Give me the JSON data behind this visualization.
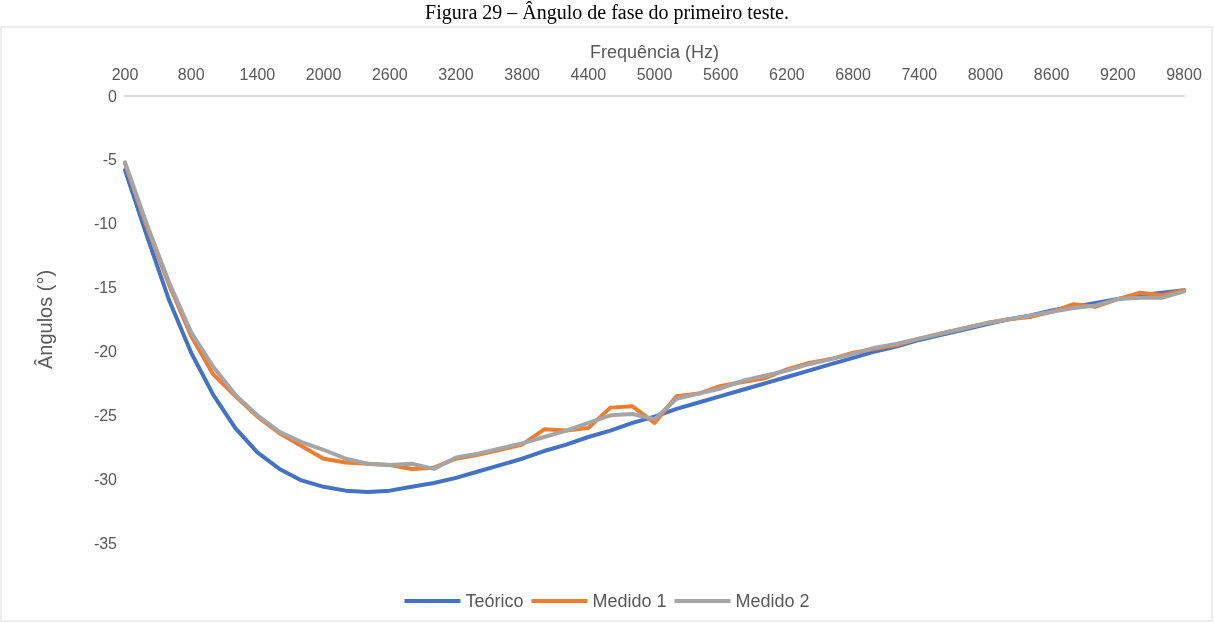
{
  "chart_data": {
    "type": "line",
    "title": "Figura 29 – Ângulo de fase do primeiro teste.",
    "xlabel": "Frequência (Hz)",
    "ylabel": "Ângulos (°)",
    "categories": [
      "200",
      null,
      null,
      "800",
      null,
      null,
      "1400",
      null,
      null,
      "2000",
      null,
      null,
      "2600",
      null,
      null,
      "3200",
      null,
      null,
      "3800",
      null,
      null,
      "4400",
      null,
      null,
      "5000",
      null,
      null,
      "5600",
      null,
      null,
      "6200",
      null,
      null,
      "6800",
      null,
      null,
      "7400",
      null,
      null,
      "8000",
      null,
      null,
      "8600",
      null,
      null,
      "9200",
      null,
      null,
      "9800"
    ],
    "series": [
      {
        "name": "Teórico",
        "color": "#4472c4",
        "values": [
          -5.8,
          -11,
          -16,
          -20.1,
          -23.4,
          -26,
          -27.9,
          -29.2,
          -30.1,
          -30.6,
          -30.9,
          -31,
          -30.9,
          -30.6,
          -30.3,
          -29.9,
          -29.4,
          -28.9,
          -28.4,
          -27.8,
          -27.3,
          -26.7,
          -26.2,
          -25.6,
          -25.1,
          -24.5,
          -24,
          -23.5,
          -23,
          -22.5,
          -22,
          -21.5,
          -21,
          -20.5,
          -20,
          -19.6,
          -19.1,
          -18.7,
          -18.3,
          -17.9,
          -17.5,
          -17.2,
          -16.8,
          -16.5,
          -16.2,
          -15.9,
          -15.6,
          -15.4,
          -15.2
        ]
      },
      {
        "name": "Medido 1",
        "color": "#ed7d31",
        "values": [
          -5.3,
          -10.3,
          -14.8,
          -18.8,
          -21.8,
          -23.5,
          -25.1,
          -26.4,
          -27.4,
          -28.4,
          -28.7,
          -28.8,
          -28.9,
          -29.2,
          -29.1,
          -28.4,
          -28.1,
          -27.7,
          -27.3,
          -26.1,
          -26.2,
          -26,
          -24.4,
          -24.3,
          -25.6,
          -23.5,
          -23.3,
          -22.7,
          -22.4,
          -22.1,
          -21.4,
          -20.9,
          -20.6,
          -20.1,
          -19.8,
          -19.5,
          -19,
          -18.6,
          -18.2,
          -17.8,
          -17.5,
          -17.3,
          -16.9,
          -16.3,
          -16.5,
          -15.9,
          -15.4,
          -15.6,
          -15.2
        ]
      },
      {
        "name": "Medido 2",
        "color": "#a5a5a5",
        "values": [
          -5.2,
          -10.1,
          -14.6,
          -18.5,
          -21.2,
          -23.4,
          -25,
          -26.3,
          -27.1,
          -27.7,
          -28.4,
          -28.8,
          -28.9,
          -28.8,
          -29.2,
          -28.3,
          -28,
          -27.6,
          -27.2,
          -26.7,
          -26.2,
          -25.6,
          -25,
          -24.9,
          -25.3,
          -23.7,
          -23.3,
          -22.9,
          -22.3,
          -21.9,
          -21.5,
          -21,
          -20.6,
          -20.2,
          -19.7,
          -19.4,
          -19,
          -18.6,
          -18.2,
          -17.8,
          -17.5,
          -17.2,
          -16.9,
          -16.6,
          -16.4,
          -15.9,
          -15.8,
          -15.8,
          -15.3
        ]
      }
    ],
    "ylim": [
      -35,
      0
    ],
    "yticks": [
      0,
      -5,
      -10,
      -15,
      -20,
      -25,
      -30,
      -35
    ],
    "grid": false,
    "legend": "bottom",
    "marker": "none",
    "line_style": "solid"
  }
}
